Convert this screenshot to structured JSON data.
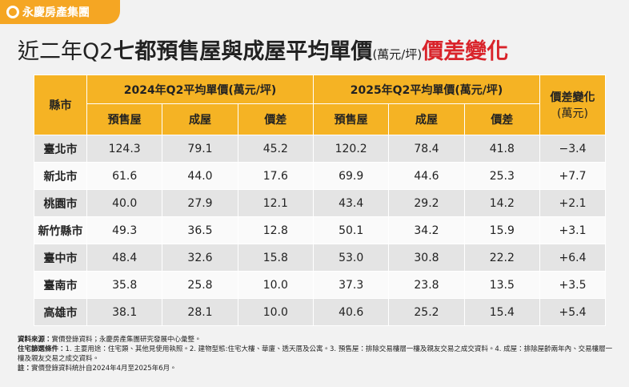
{
  "logo": "永慶房產集團",
  "title": {
    "lead": "近二年Q2",
    "main": "七都預售屋與成屋平均單價",
    "unit": "(萬元/坪)",
    "accent": "價差變化"
  },
  "table": {
    "header": {
      "county": "縣市",
      "group_2024": "2024年Q2平均單價(萬元/坪)",
      "group_2025": "2025年Q2平均單價(萬元/坪)",
      "change": "價差變化",
      "change_unit": "(萬元)",
      "sub": [
        "預售屋",
        "成屋",
        "價差",
        "預售屋",
        "成屋",
        "價差"
      ]
    },
    "rows": [
      [
        "臺北市",
        "124.3",
        "79.1",
        "45.2",
        "120.2",
        "78.4",
        "41.8",
        "−3.4"
      ],
      [
        "新北市",
        "61.6",
        "44.0",
        "17.6",
        "69.9",
        "44.6",
        "25.3",
        "+7.7"
      ],
      [
        "桃園市",
        "40.0",
        "27.9",
        "12.1",
        "43.4",
        "29.2",
        "14.2",
        "+2.1"
      ],
      [
        "新竹縣市",
        "49.3",
        "36.5",
        "12.8",
        "50.1",
        "34.2",
        "15.9",
        "+3.1"
      ],
      [
        "臺中市",
        "48.4",
        "32.6",
        "15.8",
        "53.0",
        "30.8",
        "22.2",
        "+6.4"
      ],
      [
        "臺南市",
        "35.8",
        "25.8",
        "10.0",
        "37.3",
        "23.8",
        "13.5",
        "+3.5"
      ],
      [
        "高雄市",
        "38.1",
        "28.1",
        "10.0",
        "40.6",
        "25.2",
        "15.4",
        "+5.4"
      ]
    ]
  },
  "notes": [
    {
      "label": "資料來源：",
      "text": "實價登錄資料；永慶房產集團研究發展中心彙整。"
    },
    {
      "label": "住宅篩選條件：",
      "text": "1. 主要用途：住宅類、其他見使用執照。2. 建物型態:住宅大樓、華廈、透天厝及公寓。3. 預售屋：排除交易樓層一樓及親友交易之成交資料。4. 成屋：排除屋齡兩年內、交易樓層一樓及親友交易之成交資料。"
    },
    {
      "label": "註：",
      "text": "實價登錄資料統計自2024年4月至2025年6月。"
    }
  ]
}
